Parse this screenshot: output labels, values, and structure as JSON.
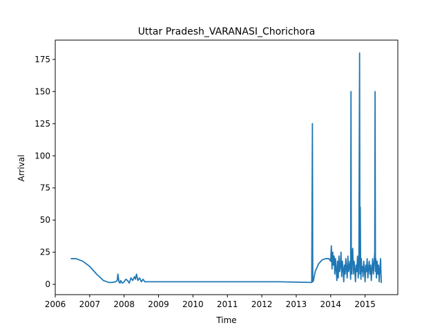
{
  "chart_data": {
    "type": "line",
    "title": "Uttar Pradesh_VARANASI_Chorichora",
    "xlabel": "Time",
    "ylabel": "Arrival",
    "xlim": [
      2006.0,
      2015.95
    ],
    "ylim": [
      -8,
      190
    ],
    "xticks": [
      2006,
      2007,
      2008,
      2009,
      2010,
      2011,
      2012,
      2013,
      2014,
      2015
    ],
    "yticks": [
      0,
      25,
      50,
      75,
      100,
      125,
      150,
      175
    ],
    "grid": false,
    "color": "#1f77b4",
    "series": [
      {
        "x": [
          2006.45,
          2006.6,
          2006.8,
          2007.0,
          2007.2,
          2007.4,
          2007.55,
          2007.65,
          2007.75,
          2007.8,
          2007.82,
          2007.85,
          2007.88,
          2007.9,
          2007.92,
          2007.95,
          2008.0,
          2008.05,
          2008.1,
          2008.15,
          2008.2,
          2008.25,
          2008.3,
          2008.33,
          2008.36,
          2008.4,
          2008.45,
          2008.5,
          2008.55,
          2008.6,
          2009.5,
          2011.0,
          2012.5,
          2013.45,
          2013.47,
          2013.48,
          2013.5,
          2013.55,
          2013.65,
          2013.75,
          2013.85,
          2013.95,
          2014.0,
          2014.02,
          2014.04,
          2014.06,
          2014.08,
          2014.1,
          2014.12,
          2014.14,
          2014.16,
          2014.18,
          2014.2,
          2014.22,
          2014.24,
          2014.26,
          2014.28,
          2014.3,
          2014.32,
          2014.34,
          2014.36,
          2014.38,
          2014.4,
          2014.42,
          2014.44,
          2014.46,
          2014.48,
          2014.5,
          2014.52,
          2014.54,
          2014.56,
          2014.58,
          2014.59,
          2014.6,
          2014.61,
          2014.62,
          2014.64,
          2014.66,
          2014.68,
          2014.7,
          2014.72,
          2014.74,
          2014.76,
          2014.78,
          2014.8,
          2014.82,
          2014.84,
          2014.85,
          2014.86,
          2014.87,
          2014.88,
          2014.89,
          2014.9,
          2014.92,
          2014.94,
          2014.96,
          2014.98,
          2015.0,
          2015.02,
          2015.04,
          2015.06,
          2015.08,
          2015.1,
          2015.12,
          2015.14,
          2015.16,
          2015.18,
          2015.2,
          2015.22,
          2015.24,
          2015.26,
          2015.28,
          2015.29,
          2015.3,
          2015.31,
          2015.33,
          2015.35,
          2015.37,
          2015.39,
          2015.41,
          2015.43,
          2015.45,
          2015.47
        ],
        "y": [
          20,
          20,
          18,
          14,
          8,
          3,
          1.5,
          1.5,
          2,
          3,
          8,
          2,
          1,
          3,
          2,
          1,
          2,
          4,
          3,
          1,
          5,
          3,
          6,
          4,
          8,
          3,
          5,
          2,
          4,
          2,
          2,
          2,
          2,
          1.5,
          125,
          2,
          3,
          10,
          16,
          19,
          20,
          20,
          18,
          30,
          12,
          25,
          15,
          22,
          8,
          20,
          12,
          3,
          18,
          5,
          22,
          10,
          14,
          25,
          6,
          18,
          12,
          2,
          15,
          8,
          20,
          12,
          5,
          22,
          10,
          14,
          18,
          4,
          150,
          12,
          8,
          20,
          28,
          8,
          18,
          12,
          2,
          15,
          10,
          22,
          5,
          18,
          180,
          8,
          60,
          15,
          4,
          20,
          10,
          14,
          6,
          18,
          12,
          2,
          15,
          10,
          20,
          5,
          12,
          18,
          8,
          15,
          3,
          12,
          20,
          8,
          15,
          25,
          150,
          10,
          20,
          5,
          18,
          8,
          15,
          2,
          12,
          20,
          1
        ]
      }
    ]
  }
}
